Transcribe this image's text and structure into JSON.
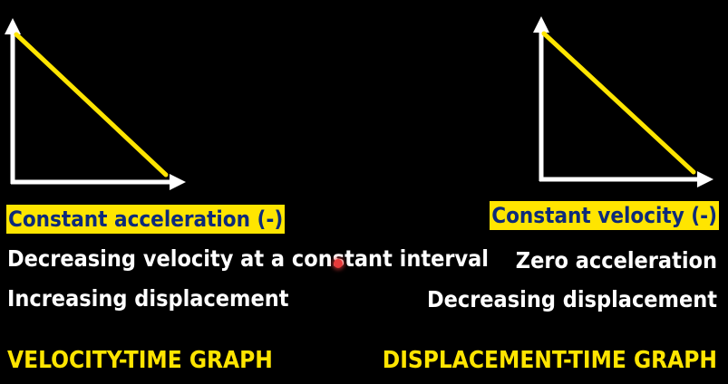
{
  "left_panel": {
    "highlight": "Constant acceleration (-)",
    "line1": "Decreasing velocity at a constant interval",
    "line2": "Increasing displacement",
    "title": "VELOCITY-TIME GRAPH"
  },
  "right_panel": {
    "highlight": "Constant velocity (-)",
    "line1": "Zero acceleration",
    "line2": "Decreasing displacement",
    "title": "DISPLACEMENT-TIME GRAPH"
  },
  "colors": {
    "background": "#000000",
    "accent": "#ffe500",
    "highlight_text": "#0d2a7a",
    "axis": "#ffffff"
  }
}
